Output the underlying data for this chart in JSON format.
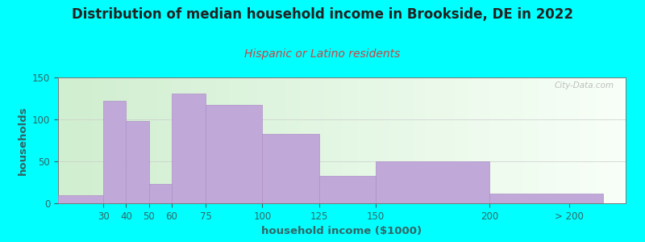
{
  "title": "Distribution of median household income in Brookside, DE in 2022",
  "subtitle": "Hispanic or Latino residents",
  "xlabel": "household income ($1000)",
  "ylabel": "households",
  "background_outer": "#00FFFF",
  "bar_color": "#c0a8d8",
  "bar_edge_color": "#b090c8",
  "categories": [
    "30",
    "40",
    "50",
    "60",
    "75",
    "100",
    "125",
    "150",
    "200",
    "> 200"
  ],
  "values": [
    10,
    122,
    98,
    23,
    131,
    117,
    83,
    33,
    50,
    12
  ],
  "ylim": [
    0,
    150
  ],
  "yticks": [
    0,
    50,
    100,
    150
  ],
  "title_fontsize": 12,
  "subtitle_fontsize": 10,
  "label_fontsize": 9.5,
  "tick_fontsize": 8.5,
  "watermark_text": "City-Data.com",
  "title_color": "#222222",
  "subtitle_color": "#cc4444",
  "axis_label_color": "#336666",
  "tick_color": "#336666",
  "bar_lefts": [
    10,
    30,
    40,
    50,
    60,
    75,
    100,
    125,
    150,
    200
  ],
  "bar_widths": [
    20,
    10,
    10,
    10,
    15,
    25,
    25,
    25,
    50,
    50
  ],
  "xlim": [
    10,
    260
  ],
  "xtick_positions": [
    30,
    40,
    50,
    60,
    75,
    100,
    125,
    150,
    200,
    235
  ]
}
